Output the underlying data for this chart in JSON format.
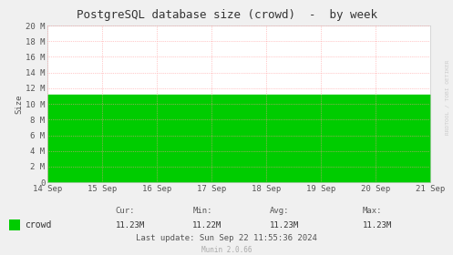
{
  "title": "PostgreSQL database size (crowd)  -  by week",
  "ylabel": "Size",
  "background_color": "#f0f0f0",
  "plot_bg_color": "#ffffff",
  "grid_color": "#ff9999",
  "fill_color": "#00cc00",
  "line_color": "#00cc00",
  "y_min": 0,
  "y_max": 20,
  "y_ticks": [
    0,
    2,
    4,
    6,
    8,
    10,
    12,
    14,
    16,
    18,
    20
  ],
  "y_tick_labels": [
    "0",
    "2 M",
    "4 M",
    "6 M",
    "8 M",
    "10 M",
    "12 M",
    "14 M",
    "16 M",
    "18 M",
    "20 M"
  ],
  "x_tick_labels": [
    "14 Sep",
    "15 Sep",
    "16 Sep",
    "17 Sep",
    "18 Sep",
    "19 Sep",
    "20 Sep",
    "21 Sep"
  ],
  "data_value": 11.23,
  "legend_label": "crowd",
  "cur_val": "11.23M",
  "min_val": "11.22M",
  "avg_val": "11.23M",
  "max_val": "11.23M",
  "last_update": "Last update: Sun Sep 22 11:55:36 2024",
  "munin_version": "Munin 2.0.66",
  "watermark": "RRDTOOL / TOBI OETIKER",
  "title_fontsize": 9,
  "axis_fontsize": 6.5,
  "legend_fontsize": 7,
  "stats_fontsize": 6.5
}
